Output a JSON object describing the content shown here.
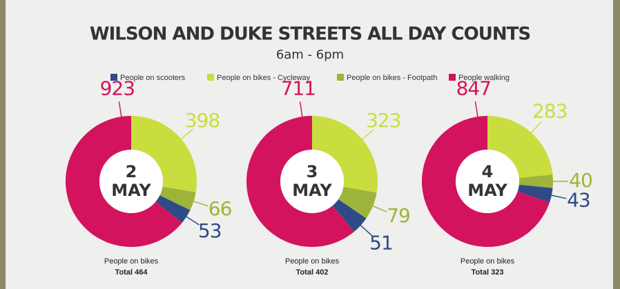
{
  "header": {
    "title": "WILSON AND DUKE STREETS ALL DAY COUNTS",
    "subtitle": "6am - 6pm"
  },
  "chart_data": [
    {
      "type": "donut",
      "date": [
        "2",
        "MAY"
      ],
      "categories": [
        "People on bikes - Cycleway",
        "People on bikes - Footpath",
        "People on scooters",
        "People walking"
      ],
      "colors": [
        "#c9dd3e",
        "#9db43a",
        "#2f4a86",
        "#d3135e"
      ],
      "values": [
        398,
        66,
        53,
        923
      ],
      "caption": "People on bikes",
      "total_caption": "Total",
      "total": 464
    },
    {
      "type": "donut",
      "date": [
        "3",
        "MAY"
      ],
      "categories": [
        "People on bikes - Cycleway",
        "People on bikes - Footpath",
        "People on scooters",
        "People walking"
      ],
      "colors": [
        "#c9dd3e",
        "#9db43a",
        "#2f4a86",
        "#d3135e"
      ],
      "values": [
        323,
        79,
        51,
        711
      ],
      "caption": "People on bikes",
      "total_caption": "Total",
      "total": 402
    },
    {
      "type": "donut",
      "date": [
        "4",
        "MAY"
      ],
      "categories": [
        "People on bikes - Cycleway",
        "People on bikes - Footpath",
        "People on scooters",
        "People walking"
      ],
      "colors": [
        "#c9dd3e",
        "#9db43a",
        "#2f4a86",
        "#d3135e"
      ],
      "values": [
        283,
        40,
        43,
        847
      ],
      "caption": "People on bikes",
      "total_caption": "Total",
      "total": 323
    }
  ]
}
